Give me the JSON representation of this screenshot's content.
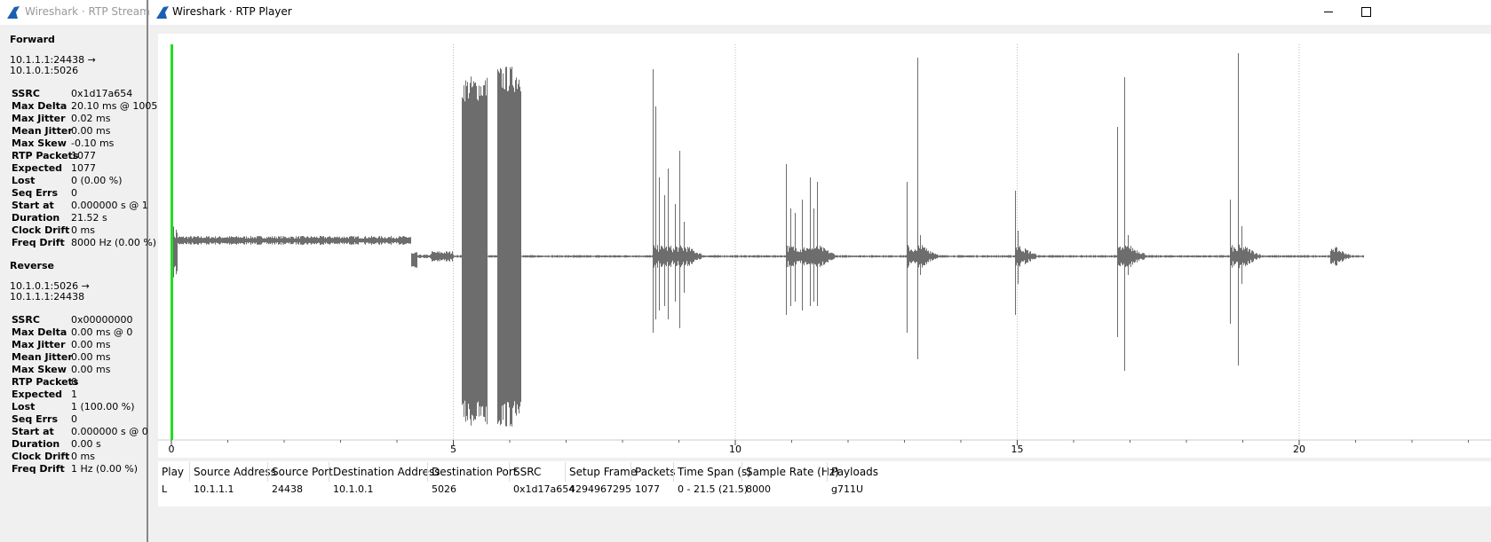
{
  "windows": {
    "left_title": "Wireshark · RTP Stream Anal",
    "right_title": "Wireshark · RTP Player"
  },
  "left_panel": {
    "sections": [
      {
        "title": "Forward",
        "endpoints": [
          "10.1.1.1:24438 →",
          "10.1.0.1:5026"
        ],
        "stats": [
          [
            "SSRC",
            "0x1d17a654"
          ],
          [
            "Max Delta",
            "20.10 ms @ 1005"
          ],
          [
            "Max Jitter",
            "0.02 ms"
          ],
          [
            "Mean Jitter",
            "0.00 ms"
          ],
          [
            "Max Skew",
            "-0.10 ms"
          ],
          [
            "RTP Packets",
            "1077"
          ],
          [
            "Expected",
            "1077"
          ],
          [
            "Lost",
            "0 (0.00 %)"
          ],
          [
            "Seq Errs",
            "0"
          ],
          [
            "Start at",
            "0.000000 s @ 1"
          ],
          [
            "Duration",
            "21.52 s"
          ],
          [
            "Clock Drift",
            "0 ms"
          ],
          [
            "Freq Drift",
            "8000 Hz (0.00 %)"
          ]
        ]
      },
      {
        "title": "Reverse",
        "endpoints": [
          "10.1.0.1:5026 →",
          "10.1.1.1:24438"
        ],
        "stats": [
          [
            "SSRC",
            "0x00000000"
          ],
          [
            "Max Delta",
            "0.00 ms @ 0"
          ],
          [
            "Max Jitter",
            "0.00 ms"
          ],
          [
            "Mean Jitter",
            "0.00 ms"
          ],
          [
            "Max Skew",
            "0.00 ms"
          ],
          [
            "RTP Packets",
            "0"
          ],
          [
            "Expected",
            "1"
          ],
          [
            "Lost",
            "1 (100.00 %)"
          ],
          [
            "Seq Errs",
            "0"
          ],
          [
            "Start at",
            "0.000000 s @ 0"
          ],
          [
            "Duration",
            "0.00 s"
          ],
          [
            "Clock Drift",
            "0 ms"
          ],
          [
            "Freq Drift",
            "1 Hz (0.00 %)"
          ]
        ]
      }
    ]
  },
  "plot": {
    "xticks": [
      0,
      5,
      10,
      15,
      20
    ]
  },
  "table": {
    "columns": [
      "Play",
      "Source Address",
      "Source Port",
      "Destination Address",
      "Destination Port",
      "SSRC",
      "Setup Frame",
      "Packets",
      "Time Span (s)",
      "Sample Rate (Hz)",
      "Payloads"
    ],
    "rows": [
      [
        "L",
        "10.1.1.1",
        "24438",
        "10.1.0.1",
        "5026",
        "0x1d17a654",
        "4294967295",
        "1077",
        "0 - 21.5 (21.5)",
        "8000",
        "g711U"
      ]
    ]
  }
}
